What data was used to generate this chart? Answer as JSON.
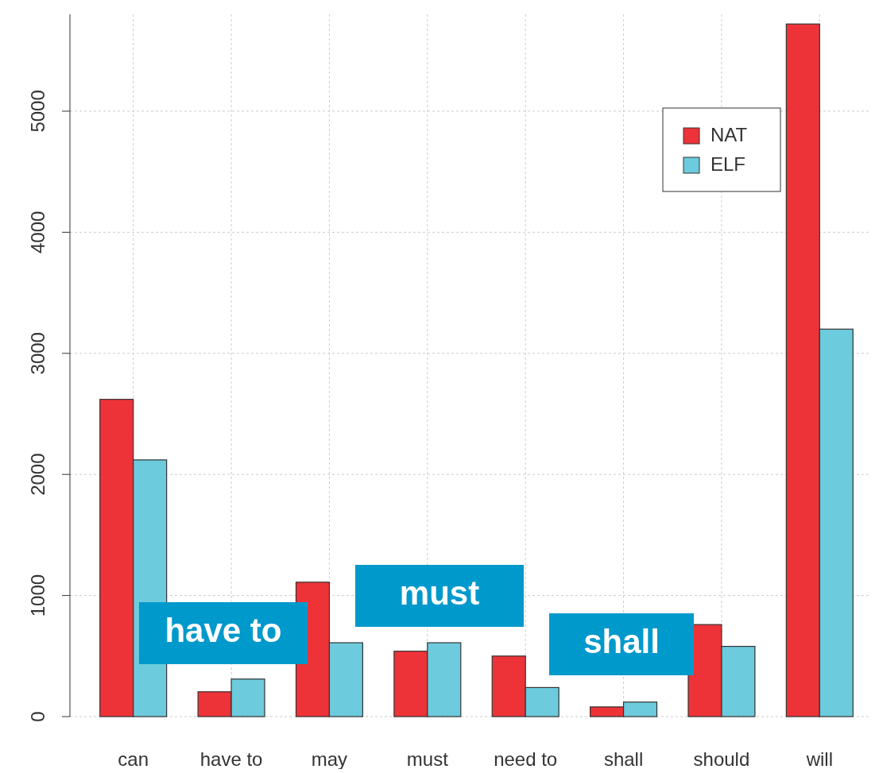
{
  "chart_data": {
    "type": "bar",
    "categories": [
      "can",
      "have to",
      "may",
      "must",
      "need to",
      "shall",
      "should",
      "will"
    ],
    "series": [
      {
        "name": "NAT",
        "color": "#ee3338",
        "values": [
          2620,
          205,
          1110,
          540,
          500,
          80,
          760,
          5720
        ]
      },
      {
        "name": "ELF",
        "color": "#6ccbdc",
        "values": [
          2120,
          310,
          610,
          610,
          240,
          120,
          580,
          3200
        ]
      }
    ],
    "ylim": [
      0,
      5800
    ],
    "yticks": [
      0,
      1000,
      2000,
      3000,
      4000,
      5000
    ],
    "grid": true,
    "legend": "top right",
    "annotations": [
      "have to",
      "must",
      "shall"
    ]
  }
}
